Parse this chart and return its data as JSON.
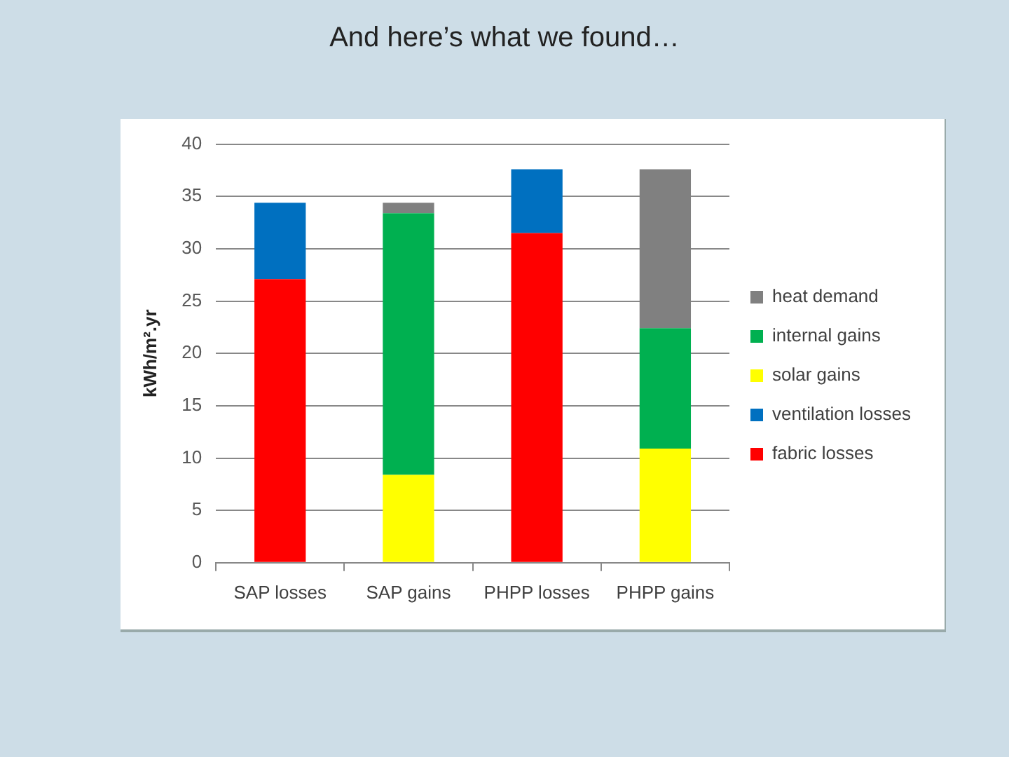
{
  "chart_data": {
    "type": "bar",
    "title": "And here’s what we found…",
    "ylabel": "kWh/m².yr",
    "categories": [
      "SAP losses",
      "SAP gains",
      "PHPP losses",
      "PHPP gains"
    ],
    "stacked": true,
    "series": [
      {
        "name": "fabric losses",
        "color": "#ff0000",
        "values": [
          27.1,
          null,
          31.5,
          null
        ]
      },
      {
        "name": "ventilation losses",
        "color": "#0070c0",
        "values": [
          7.3,
          null,
          6.1,
          null
        ]
      },
      {
        "name": "solar gains",
        "color": "#ffff00",
        "values": [
          null,
          8.4,
          null,
          10.9
        ]
      },
      {
        "name": "internal gains",
        "color": "#00b050",
        "values": [
          null,
          25.0,
          null,
          11.5
        ]
      },
      {
        "name": "heat demand",
        "color": "#808080",
        "values": [
          null,
          1.0,
          null,
          15.2
        ]
      }
    ],
    "ylim": [
      0,
      40
    ],
    "yticks": [
      0,
      5,
      10,
      15,
      20,
      25,
      30,
      35,
      40
    ],
    "grid": "y",
    "legend": "right"
  }
}
